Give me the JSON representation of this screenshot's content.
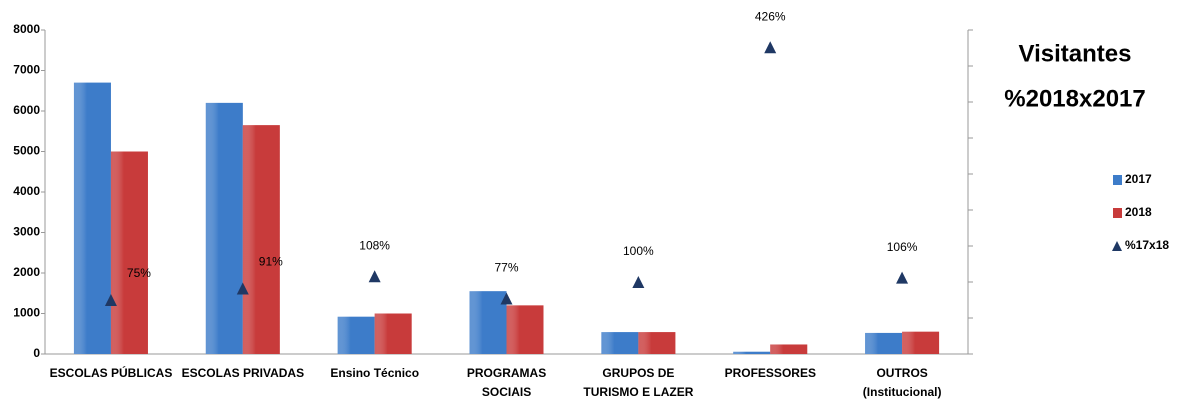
{
  "chart_data": {
    "type": "bar",
    "title": "Visitantes",
    "subtitle": "%2018x2017",
    "categories": [
      "ESCOLAS PÚBLICAS",
      "ESCOLAS PRIVADAS",
      "Ensino Técnico",
      "PROGRAMAS\nSOCIAIS",
      "GRUPOS DE\nTURISMO E LAZER",
      "PROFESSORES",
      "OUTROS\n(Institucional)"
    ],
    "series": [
      {
        "name": "2017",
        "color": "#3d7cc9",
        "values": [
          6700,
          6200,
          920,
          1550,
          540,
          55,
          520
        ]
      },
      {
        "name": "2018",
        "color": "#c83b3b",
        "values": [
          5000,
          5650,
          1000,
          1200,
          540,
          235,
          550
        ]
      },
      {
        "name": "%17x18",
        "color": "#1f3864",
        "axis": "y2",
        "marker": "triangle",
        "values": [
          75,
          91,
          108,
          77,
          100,
          426,
          106
        ],
        "value_labels": [
          "75%",
          "91%",
          "108%",
          "77%",
          "100%",
          "426%",
          "106%"
        ]
      }
    ],
    "ylim": [
      0,
      8000
    ],
    "yticks": [
      0,
      1000,
      2000,
      3000,
      4000,
      5000,
      6000,
      7000,
      8000
    ],
    "y2lim": [
      0,
      450
    ],
    "y2ticks": [
      0,
      50,
      100,
      150,
      200,
      250,
      300,
      350,
      400,
      450
    ],
    "legend": "right"
  }
}
